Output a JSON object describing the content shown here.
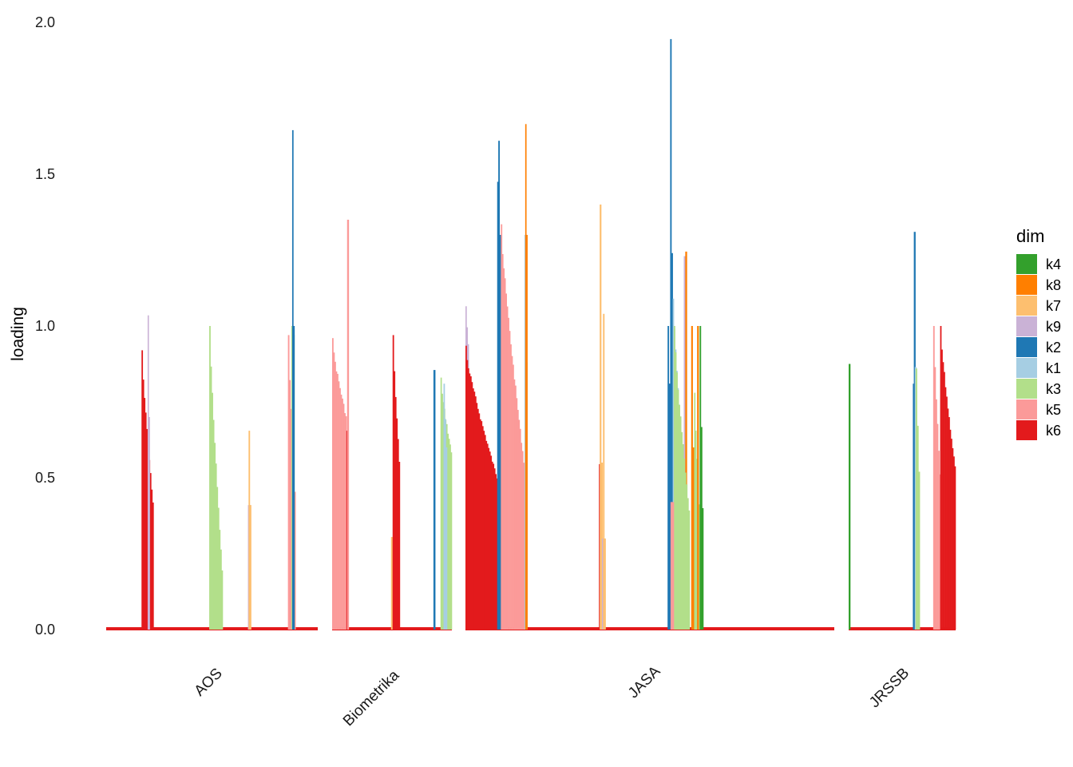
{
  "chart_data": {
    "type": "bar",
    "subtype": "faceted stacked bars (loadings per item)",
    "ylabel": "loading",
    "xlabel": "",
    "ylim": [
      0,
      2.0
    ],
    "yticks": [
      0.0,
      0.5,
      1.0,
      1.5,
      2.0
    ],
    "ytick_labels": [
      "0.0",
      "0.5",
      "1.0",
      "1.5",
      "2.0"
    ],
    "grid": false,
    "legend": {
      "title": "dim",
      "position": "right",
      "entries": [
        {
          "key": "k4",
          "color": "#33a02c"
        },
        {
          "key": "k8",
          "color": "#ff7f00"
        },
        {
          "key": "k7",
          "color": "#fdbf6f"
        },
        {
          "key": "k9",
          "color": "#cab2d6"
        },
        {
          "key": "k2",
          "color": "#1f78b4"
        },
        {
          "key": "k1",
          "color": "#a6cee3"
        },
        {
          "key": "k3",
          "color": "#b2df8a"
        },
        {
          "key": "k5",
          "color": "#fb9a99"
        },
        {
          "key": "k6",
          "color": "#e31a1c"
        }
      ]
    },
    "baseline_color": "#e31a1c",
    "facets": [
      {
        "name": "AOS",
        "span": [
          0,
          1
        ],
        "groups": [
          {
            "dim": "k6",
            "start": 0.167,
            "end": 0.224,
            "max": 0.92,
            "min": 0.43
          },
          {
            "dim": "k9",
            "start": 0.196,
            "end": 0.206,
            "max": 1.035,
            "min": 0.7
          },
          {
            "dim": "k3",
            "start": 0.487,
            "end": 0.551,
            "max": 1.0,
            "min": 0.2
          },
          {
            "dim": "k9",
            "start": 0.67,
            "end": 0.684,
            "max": 0.41,
            "min": 0.41
          },
          {
            "dim": "k7",
            "start": 0.673,
            "end": 0.685,
            "max": 0.655,
            "min": 0.41
          },
          {
            "dim": "k5",
            "start": 0.859,
            "end": 0.895,
            "max": 0.97,
            "min": 0.47
          },
          {
            "dim": "k3",
            "start": 0.875,
            "end": 0.89,
            "max": 1.0,
            "min": 0.97
          },
          {
            "dim": "k2",
            "start": 0.879,
            "end": 0.89,
            "max": 1.645,
            "min": 1.0
          }
        ]
      },
      {
        "name": "Biometrika",
        "span": [
          0,
          1
        ],
        "groups": [
          {
            "dim": "k5",
            "start": 0.0,
            "end": 0.121,
            "max": 0.96,
            "min": 0.72
          },
          {
            "dim": "k6",
            "start": 0.119,
            "end": 0.133,
            "max": 0.655,
            "min": 0.655
          },
          {
            "dim": "k5",
            "start": 0.125,
            "end": 0.139,
            "max": 1.35,
            "min": 0.8
          },
          {
            "dim": "k7",
            "start": 0.492,
            "end": 0.505,
            "max": 0.305,
            "min": 0.305
          },
          {
            "dim": "k6",
            "start": 0.505,
            "end": 0.566,
            "max": 0.97,
            "min": 0.57
          },
          {
            "dim": "k2",
            "start": 0.846,
            "end": 0.861,
            "max": 0.855,
            "min": 0.855
          },
          {
            "dim": "k3",
            "start": 0.905,
            "end": 1.0,
            "max": 0.83,
            "min": 0.6
          },
          {
            "dim": "k1",
            "start": 0.93,
            "end": 0.96,
            "max": 0.81,
            "min": 0.6
          }
        ]
      },
      {
        "name": "JASA",
        "span": [
          0,
          1
        ],
        "groups": [
          {
            "dim": "k9",
            "start": 0.0,
            "end": 0.009,
            "max": 1.065,
            "min": 0.94
          },
          {
            "dim": "k6",
            "start": 0.0,
            "end": 0.1,
            "max": 0.935,
            "min": 0.46
          },
          {
            "dim": "k1",
            "start": 0.087,
            "end": 0.094,
            "max": 1.2,
            "min": 0.62
          },
          {
            "dim": "k2",
            "start": 0.086,
            "end": 0.094,
            "max": 1.475,
            "min": 1.3
          },
          {
            "dim": "k2",
            "start": 0.089,
            "end": 0.096,
            "max": 1.61,
            "min": 1.3
          },
          {
            "dim": "k5",
            "start": 0.096,
            "end": 0.166,
            "max": 1.335,
            "min": 0.5
          },
          {
            "dim": "k1",
            "start": 0.16,
            "end": 0.168,
            "max": 1.3,
            "min": 0.88
          },
          {
            "dim": "k8",
            "start": 0.162,
            "end": 0.168,
            "max": 1.665,
            "min": 1.3
          },
          {
            "dim": "k6",
            "start": 0.362,
            "end": 0.368,
            "max": 0.545,
            "min": 0.545
          },
          {
            "dim": "k7",
            "start": 0.364,
            "end": 0.372,
            "max": 1.4,
            "min": 0.55
          },
          {
            "dim": "k9",
            "start": 0.37,
            "end": 0.376,
            "max": 0.3,
            "min": 0.3
          },
          {
            "dim": "k7",
            "start": 0.373,
            "end": 0.38,
            "max": 1.04,
            "min": 0.3
          },
          {
            "dim": "k2",
            "start": 0.548,
            "end": 0.565,
            "max": 1.0,
            "min": 0.43
          },
          {
            "dim": "k2",
            "start": 0.555,
            "end": 0.562,
            "max": 1.945,
            "min": 1.24
          },
          {
            "dim": "k1",
            "start": 0.562,
            "end": 0.6,
            "max": 1.09,
            "min": 0.45
          },
          {
            "dim": "k9",
            "start": 0.592,
            "end": 0.6,
            "max": 1.23,
            "min": 0.95
          },
          {
            "dim": "k8",
            "start": 0.596,
            "end": 0.6,
            "max": 1.245,
            "min": 1.0
          },
          {
            "dim": "k3",
            "start": 0.565,
            "end": 0.608,
            "max": 1.0,
            "min": 0.4
          },
          {
            "dim": "k5",
            "start": 0.556,
            "end": 0.565,
            "max": 0.42,
            "min": 0.42
          },
          {
            "dim": "k8",
            "start": 0.612,
            "end": 0.62,
            "max": 1.0,
            "min": 0.6
          },
          {
            "dim": "k3",
            "start": 0.62,
            "end": 0.635,
            "max": 0.78,
            "min": 0.42
          },
          {
            "dim": "k8",
            "start": 0.628,
            "end": 0.632,
            "max": 1.0,
            "min": 0.8
          },
          {
            "dim": "k4",
            "start": 0.635,
            "end": 0.645,
            "max": 1.0,
            "min": 0.4
          }
        ]
      },
      {
        "name": "JRSSB",
        "span": [
          0,
          1
        ],
        "groups": [
          {
            "dim": "k4",
            "start": 0.0,
            "end": 0.008,
            "max": 0.875,
            "min": 0.875
          },
          {
            "dim": "k2",
            "start": 0.6,
            "end": 0.618,
            "max": 0.81,
            "min": 0.62
          },
          {
            "dim": "k2",
            "start": 0.609,
            "end": 0.618,
            "max": 1.31,
            "min": 0.81
          },
          {
            "dim": "k1",
            "start": 0.618,
            "end": 0.63,
            "max": 0.865,
            "min": 0.6
          },
          {
            "dim": "k3",
            "start": 0.626,
            "end": 0.665,
            "max": 0.86,
            "min": 0.52
          },
          {
            "dim": "k5",
            "start": 0.79,
            "end": 0.86,
            "max": 1.0,
            "min": 0.52
          },
          {
            "dim": "k6",
            "start": 0.855,
            "end": 1.0,
            "max": 1.0,
            "min": 0.55
          }
        ]
      }
    ],
    "facet_labels": [
      "AOS",
      "Biometrika",
      "JASA",
      "JRSSB"
    ]
  }
}
